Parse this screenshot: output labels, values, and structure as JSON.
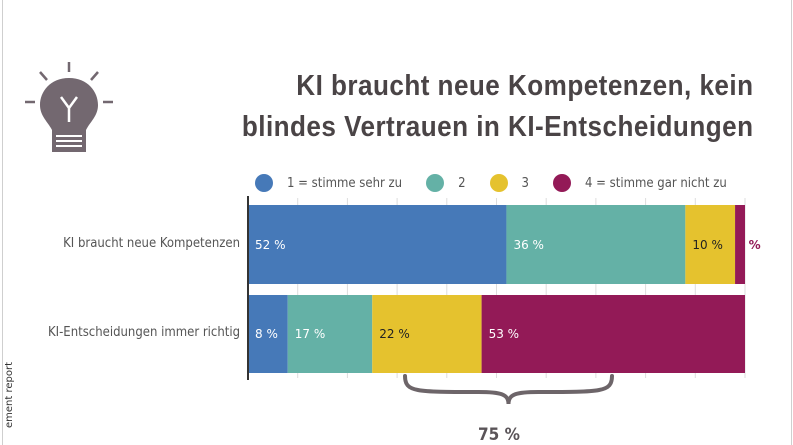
{
  "title_line1": "KI braucht neue Kompetenzen, kein",
  "title_line2": "blindes Vertrauen in KI-Entscheidungen",
  "icon": "lightbulb-icon",
  "side_text": "ement report",
  "chart_data": {
    "type": "bar",
    "orientation": "horizontal",
    "stacked": true,
    "categories": [
      "KI braucht neue Kompetenzen",
      "KI-Entscheidungen immer richtig"
    ],
    "series": [
      {
        "name": "1 = stimme sehr zu",
        "color": "#4679b8",
        "values": [
          52,
          8
        ],
        "labels": [
          "52 %",
          "8 %"
        ]
      },
      {
        "name": "2",
        "color": "#64b1a6",
        "values": [
          36,
          17
        ],
        "labels": [
          "36 %",
          "17 %"
        ]
      },
      {
        "name": "3",
        "color": "#e5c22e",
        "values": [
          10,
          22
        ],
        "labels": [
          "10 %",
          "22 %"
        ]
      },
      {
        "name": "4 = stimme gar nicht zu",
        "color": "#931a57",
        "values": [
          2,
          53
        ],
        "labels": [
          "2 %",
          "53 %"
        ]
      }
    ],
    "xlim": [
      0,
      100
    ],
    "grid": true,
    "legend": "top",
    "annotation": {
      "text": "75 %",
      "spans_series": [
        "3",
        "4 = stimme gar nicht zu"
      ],
      "category": "KI-Entscheidungen immer richtig"
    }
  }
}
